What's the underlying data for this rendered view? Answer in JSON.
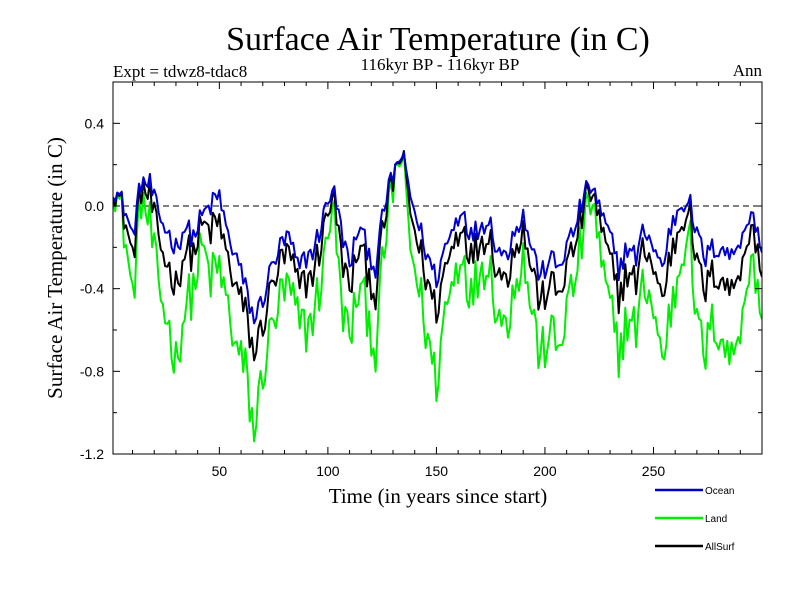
{
  "chart_data": {
    "type": "line",
    "title": "Surface Air Temperature (in C)",
    "subtitle_left": "Expt = tdwz8-tdac8",
    "subtitle_center": "116kyr BP - 116kyr BP",
    "subtitle_right": "Ann",
    "xlabel": "Time (in years since start)",
    "ylabel": "Surface Air Temperature (in C)",
    "xlim": [
      1,
      300
    ],
    "ylim": [
      -1.2,
      0.6
    ],
    "xticks": [
      50,
      100,
      150,
      200,
      250
    ],
    "xtick_labels": [
      "50",
      "100",
      "150",
      "200",
      "250"
    ],
    "yticks": [
      -1.2,
      -0.8,
      -0.4,
      0.0,
      0.4
    ],
    "ytick_labels": [
      "-1.2",
      "-0.8",
      "-0.4",
      "0.0",
      "0.4"
    ],
    "reference_line": 0.0,
    "legend_position": "bottom-right, below plot",
    "anchor_x": [
      1,
      6,
      10,
      14,
      18,
      22,
      26,
      30,
      34,
      38,
      42,
      46,
      50,
      54,
      58,
      62,
      66,
      70,
      74,
      78,
      82,
      86,
      90,
      94,
      98,
      102,
      106,
      110,
      114,
      118,
      122,
      126,
      130,
      134,
      138,
      142,
      146,
      150,
      154,
      158,
      162,
      166,
      170,
      174,
      178,
      182,
      186,
      190,
      194,
      198,
      202,
      206,
      210,
      214,
      218,
      222,
      226,
      230,
      234,
      238,
      242,
      246,
      250,
      254,
      258,
      262,
      266,
      270,
      274,
      278,
      282,
      286,
      290,
      294,
      298,
      300
    ],
    "series": [
      {
        "name": "Ocean",
        "color": "#0000cc",
        "values": [
          0.1,
          0.0,
          -0.15,
          0.12,
          0.1,
          -0.05,
          -0.12,
          -0.2,
          -0.1,
          -0.15,
          -0.05,
          0.0,
          0.05,
          -0.15,
          -0.25,
          -0.4,
          -0.55,
          -0.45,
          -0.3,
          -0.2,
          -0.15,
          -0.3,
          -0.25,
          -0.2,
          -0.05,
          0.1,
          -0.1,
          -0.3,
          -0.1,
          -0.2,
          -0.3,
          0.0,
          0.15,
          0.25,
          0.05,
          -0.1,
          -0.25,
          -0.35,
          -0.2,
          -0.1,
          0.0,
          -0.15,
          -0.1,
          -0.05,
          -0.2,
          -0.25,
          -0.1,
          -0.05,
          -0.2,
          -0.35,
          -0.25,
          -0.3,
          -0.2,
          -0.1,
          0.05,
          0.1,
          -0.05,
          -0.15,
          -0.3,
          -0.2,
          -0.25,
          -0.1,
          -0.2,
          -0.3,
          -0.1,
          0.0,
          0.05,
          -0.15,
          -0.25,
          -0.2,
          -0.2,
          -0.25,
          -0.15,
          -0.05,
          -0.1,
          -0.25
        ]
      },
      {
        "name": "Land",
        "color": "#00ee00",
        "values": [
          0.15,
          -0.1,
          -0.45,
          0.05,
          -0.1,
          -0.4,
          -0.55,
          -0.75,
          -0.5,
          -0.4,
          -0.2,
          -0.35,
          -0.3,
          -0.5,
          -0.7,
          -0.8,
          -1.1,
          -0.8,
          -0.6,
          -0.45,
          -0.4,
          -0.55,
          -0.6,
          -0.5,
          -0.3,
          0.05,
          -0.45,
          -0.65,
          -0.4,
          -0.5,
          -0.7,
          -0.2,
          0.1,
          0.25,
          -0.2,
          -0.4,
          -0.65,
          -0.85,
          -0.5,
          -0.35,
          -0.2,
          -0.45,
          -0.3,
          -0.25,
          -0.5,
          -0.6,
          -0.35,
          -0.25,
          -0.5,
          -0.75,
          -0.6,
          -0.7,
          -0.5,
          -0.35,
          -0.1,
          0.05,
          -0.3,
          -0.5,
          -0.7,
          -0.55,
          -0.6,
          -0.35,
          -0.5,
          -0.75,
          -0.5,
          -0.3,
          -0.05,
          -0.6,
          -0.7,
          -0.55,
          -0.65,
          -0.75,
          -0.55,
          -0.3,
          -0.35,
          -0.6
        ]
      },
      {
        "name": "AllSurf",
        "color": "#000000",
        "values": [
          0.12,
          -0.04,
          -0.25,
          0.09,
          0.04,
          -0.17,
          -0.28,
          -0.38,
          -0.22,
          -0.23,
          -0.1,
          -0.12,
          -0.08,
          -0.27,
          -0.4,
          -0.52,
          -0.72,
          -0.57,
          -0.4,
          -0.28,
          -0.23,
          -0.38,
          -0.37,
          -0.3,
          -0.13,
          0.08,
          -0.22,
          -0.42,
          -0.2,
          -0.3,
          -0.43,
          -0.07,
          0.13,
          0.25,
          -0.03,
          -0.2,
          -0.38,
          -0.5,
          -0.3,
          -0.18,
          -0.07,
          -0.25,
          -0.17,
          -0.12,
          -0.3,
          -0.37,
          -0.18,
          -0.12,
          -0.3,
          -0.48,
          -0.37,
          -0.43,
          -0.3,
          -0.18,
          0.0,
          0.08,
          -0.13,
          -0.27,
          -0.43,
          -0.32,
          -0.37,
          -0.18,
          -0.3,
          -0.45,
          -0.23,
          -0.1,
          0.02,
          -0.3,
          -0.4,
          -0.32,
          -0.35,
          -0.42,
          -0.28,
          -0.13,
          -0.18,
          -0.38
        ]
      }
    ]
  }
}
